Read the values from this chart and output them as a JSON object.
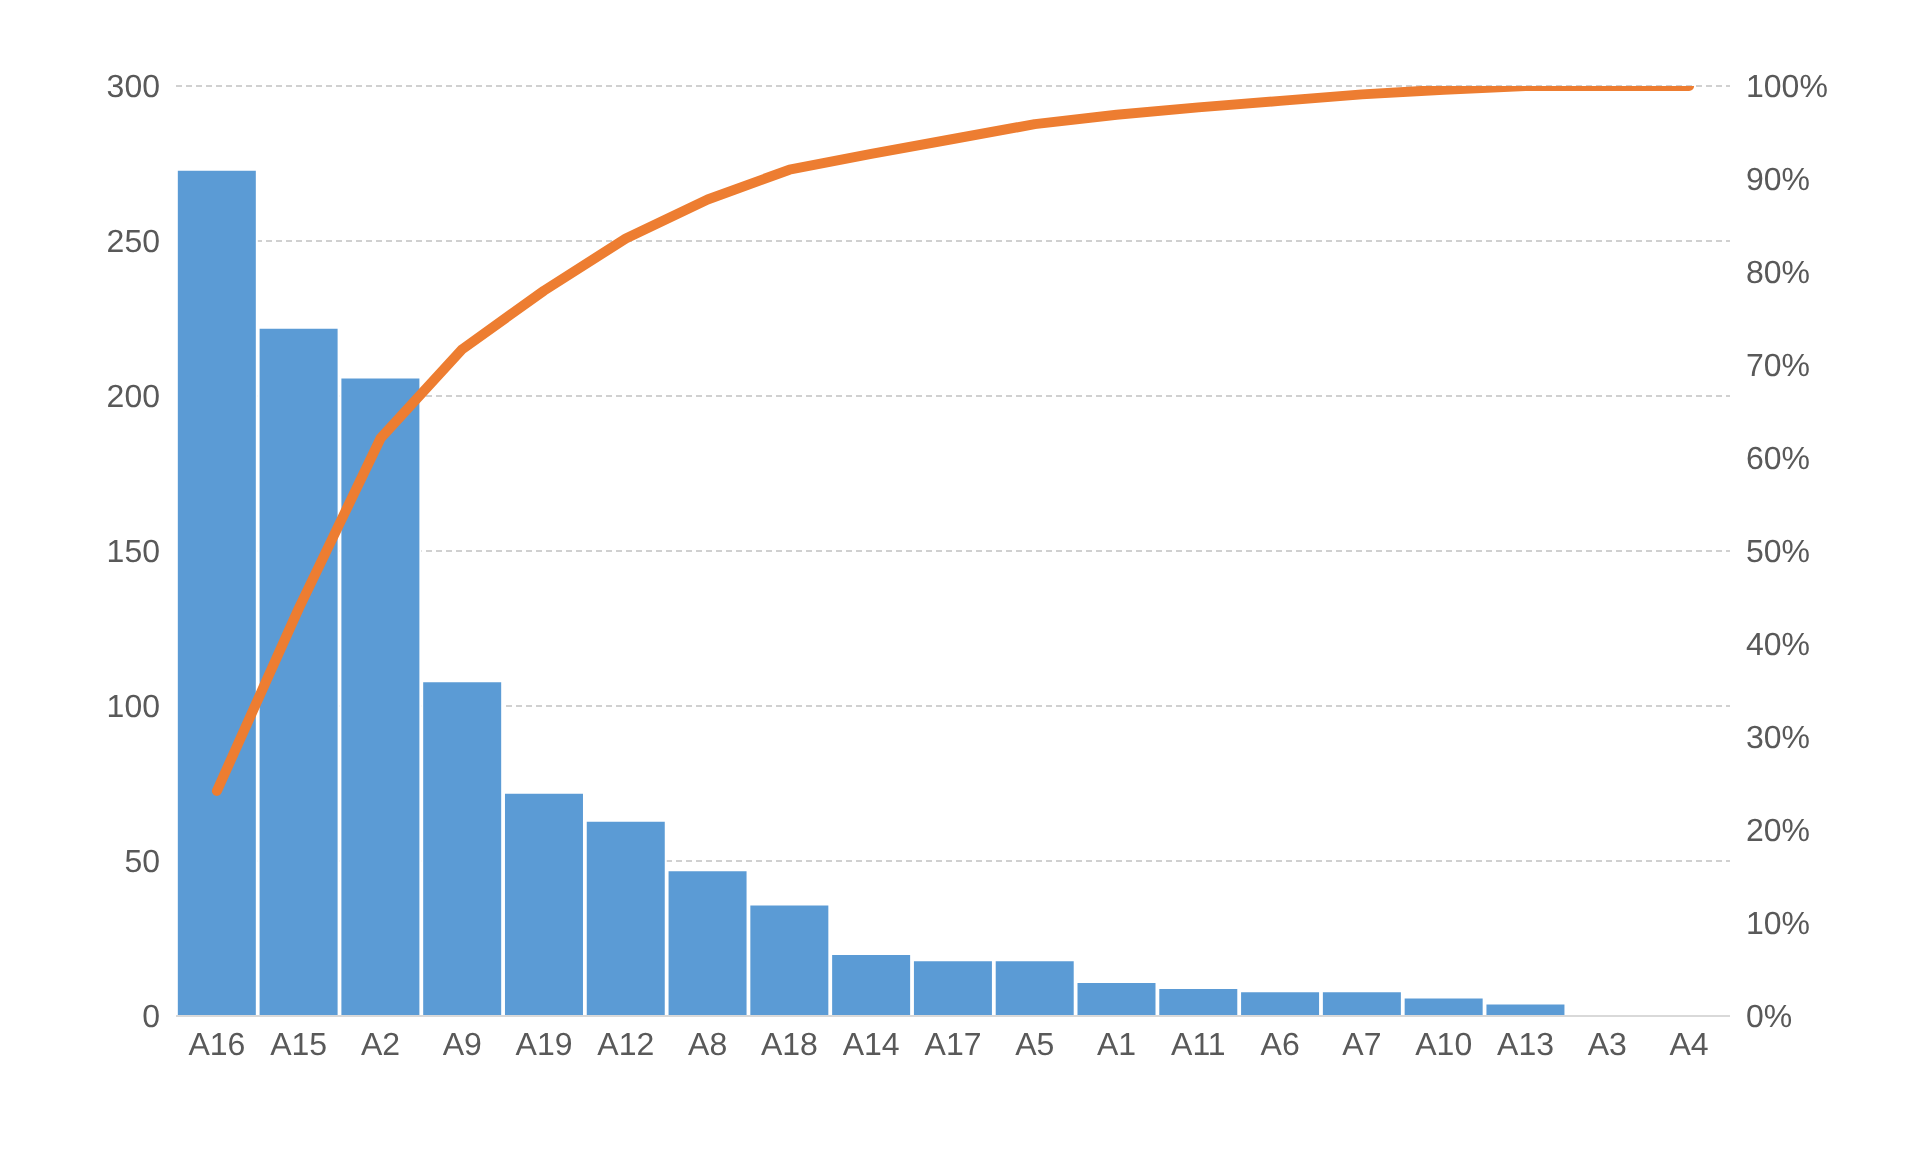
{
  "chart_data": {
    "type": "bar",
    "categories": [
      "A16",
      "A15",
      "A2",
      "A9",
      "A19",
      "A12",
      "A8",
      "A18",
      "A14",
      "A17",
      "A5",
      "A1",
      "A11",
      "A6",
      "A7",
      "A10",
      "A13",
      "A3",
      "A4"
    ],
    "series": [
      {
        "color": "#5b9bd5",
        "values": [
          273,
          222,
          206,
          108,
          72,
          63,
          47,
          36,
          20,
          18,
          18,
          11,
          9,
          8,
          8,
          6,
          4,
          0,
          0
        ]
      },
      {
        "type": "line",
        "axis": "y2",
        "color": "#ed7d31",
        "values": [
          24.2,
          43.8,
          62.1,
          71.7,
          78.0,
          83.6,
          87.8,
          91.0,
          92.7,
          94.3,
          95.9,
          96.9,
          97.7,
          98.4,
          99.1,
          99.6,
          100,
          100,
          100
        ]
      }
    ],
    "ylim": [
      0,
      300
    ],
    "yticks": [
      0,
      50,
      100,
      150,
      200,
      250,
      300
    ],
    "y2lim": [
      0,
      100
    ],
    "y2ticks": [
      {
        "value": 0,
        "label": "0%"
      },
      {
        "value": 10,
        "label": "10%"
      },
      {
        "value": 20,
        "label": "20%"
      },
      {
        "value": 30,
        "label": "30%"
      },
      {
        "value": 40,
        "label": "40%"
      },
      {
        "value": 50,
        "label": "50%"
      },
      {
        "value": 60,
        "label": "60%"
      },
      {
        "value": 70,
        "label": "70%"
      },
      {
        "value": 80,
        "label": "80%"
      },
      {
        "value": 90,
        "label": "90%"
      },
      {
        "value": 100,
        "label": "100%"
      }
    ],
    "grid": "y",
    "marker": "none"
  }
}
